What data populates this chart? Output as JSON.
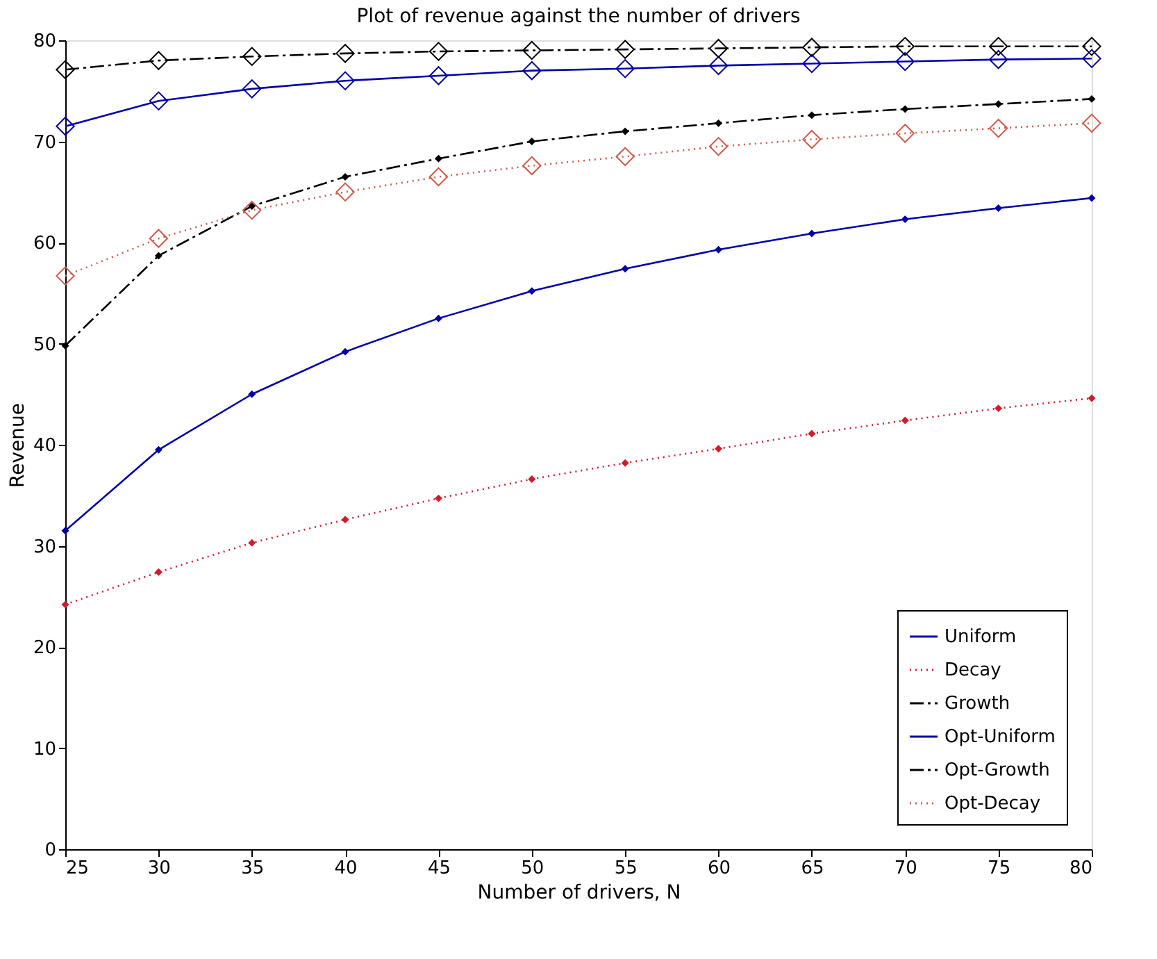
{
  "chart_data": {
    "type": "line",
    "title": "Plot of revenue against the number of drivers",
    "xlabel": "Number of drivers, N",
    "ylabel": "Revenue",
    "x": [
      25,
      30,
      35,
      40,
      45,
      50,
      55,
      60,
      65,
      70,
      75,
      80
    ],
    "xlim": [
      25,
      80
    ],
    "xticks": [
      25,
      30,
      35,
      40,
      45,
      50,
      55,
      60,
      65,
      70,
      75,
      80
    ],
    "ylim": [
      0,
      80
    ],
    "yticks": [
      0,
      10,
      20,
      30,
      40,
      50,
      60,
      70,
      80
    ],
    "grid": false,
    "legend": "bottom right",
    "marker": "diamond",
    "series": [
      {
        "name": "Uniform",
        "color": "#0000a8",
        "line_style": "solid",
        "values": [
          31.5,
          39.5,
          45,
          49.2,
          52.5,
          55.2,
          57.4,
          59.3,
          60.9,
          62.3,
          63.4,
          64.4
        ]
      },
      {
        "name": "Decay",
        "color": "#d01c2a",
        "line_style": "dotted",
        "values": [
          24.2,
          27.4,
          30.3,
          32.6,
          34.7,
          36.6,
          38.2,
          39.6,
          41.1,
          42.4,
          43.6,
          44.6
        ]
      },
      {
        "name": "Growth",
        "color": "#000000",
        "line_style": "dashed",
        "values": [
          49.8,
          58.7,
          63.6,
          66.5,
          68.3,
          70,
          71,
          71.8,
          72.6,
          73.2,
          73.7,
          74.2
        ]
      },
      {
        "name": "Opt-Uniform",
        "color": "#0000a8",
        "line_style": "solid",
        "values": [
          71.5,
          74,
          75.2,
          76,
          76.5,
          77,
          77.2,
          77.5,
          77.7,
          77.9,
          78.1,
          78.2
        ]
      },
      {
        "name": "Opt-Growth",
        "color": "#000000",
        "line_style": "dashed",
        "values": [
          77.1,
          78,
          78.4,
          78.7,
          78.9,
          79,
          79.1,
          79.2,
          79.3,
          79.4,
          79.4,
          79.4
        ]
      },
      {
        "name": "Opt-Decay",
        "color": "#d05a4a",
        "line_style": "dotted",
        "values": [
          56.7,
          60.4,
          63.2,
          65,
          66.5,
          67.6,
          68.5,
          69.5,
          70.2,
          70.8,
          71.3,
          71.8
        ]
      }
    ]
  }
}
